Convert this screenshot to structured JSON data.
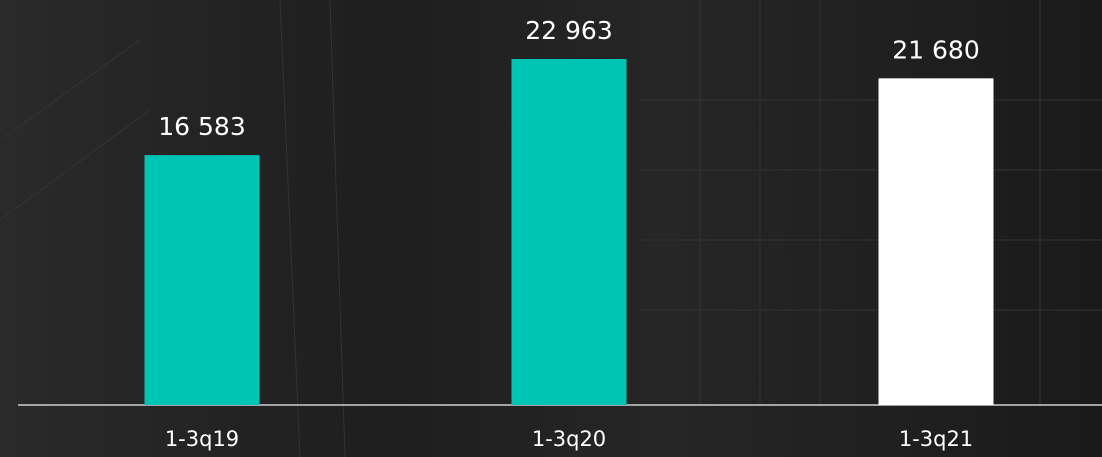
{
  "chart_data": {
    "type": "bar",
    "categories": [
      "1-3q19",
      "1-3q20",
      "1-3q21"
    ],
    "values": [
      16583,
      22963,
      21680
    ],
    "value_labels": [
      "16 583",
      "22 963",
      "21 680"
    ],
    "colors": [
      "#00c5b5",
      "#00c5b5",
      "#ffffff"
    ]
  }
}
